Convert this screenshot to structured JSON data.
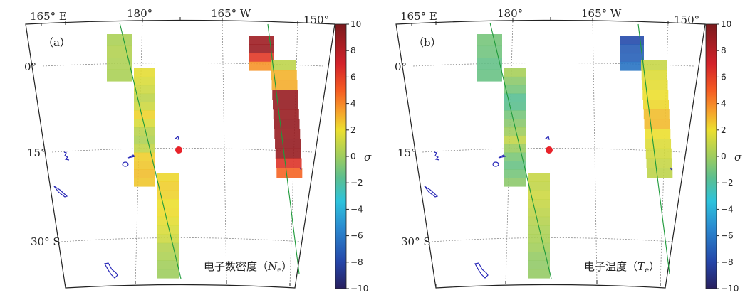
{
  "maps": [
    {
      "panel_label": "（a）",
      "title_text": "电子数密度（",
      "title_var": "N",
      "title_sub": "e",
      "title_close": "）"
    },
    {
      "panel_label": "（b）",
      "title_text": "电子温度（",
      "title_var": "T",
      "title_sub": "e",
      "title_close": "）"
    }
  ],
  "lon_labels": [
    "165° E",
    "180°",
    "165° W",
    "150°"
  ],
  "lat_labels": [
    "0°",
    "15°",
    "30° S"
  ],
  "colorbar": {
    "ticks": [
      "10",
      "8",
      "6",
      "4",
      "2",
      "0",
      "−2",
      "−4",
      "−6",
      "−8",
      "−10"
    ],
    "label": "σ",
    "min": -10,
    "max": 10
  },
  "strips": {
    "a": [
      [
        0.3,
        0.5,
        0.4,
        0.3
      ],
      [
        1.8,
        1.5,
        1.2,
        0.8,
        1.2,
        2.3,
        1.5,
        0.7,
        0.4,
        0.9,
        2.4,
        2.6,
        2.8,
        2.6
      ],
      [
        2.2,
        2.4,
        2.3,
        2.0,
        2.1,
        1.8,
        1.5,
        1.2,
        0.6,
        0.4,
        0.1,
        0.0
      ],
      [
        8.8,
        8.9,
        6.2,
        3.8
      ],
      [
        0.8,
        3.1,
        3.2,
        9.0,
        9.1,
        9.0,
        9.1,
        9.0,
        9.1,
        9.0,
        6.4,
        4.8
      ]
    ],
    "b": [
      [
        -0.9,
        -1.0,
        -1.3,
        -1.2
      ],
      [
        0.2,
        -0.4,
        -0.9,
        -1.6,
        -1.5,
        -0.9,
        -0.5,
        0.0,
        0.9,
        -0.1,
        -0.8,
        -1.2,
        -0.9,
        -0.4
      ],
      [
        1.0,
        0.9,
        1.2,
        1.0,
        0.8,
        0.6,
        0.4,
        0.3,
        0.1,
        -0.2,
        -0.3,
        -0.2
      ],
      [
        -7.8,
        -7.0,
        -6.8,
        -6.0
      ],
      [
        1.0,
        1.6,
        1.8,
        2.0,
        2.2,
        2.8,
        2.9,
        2.0,
        1.6,
        1.3,
        1.0,
        0.8
      ]
    ]
  }
}
